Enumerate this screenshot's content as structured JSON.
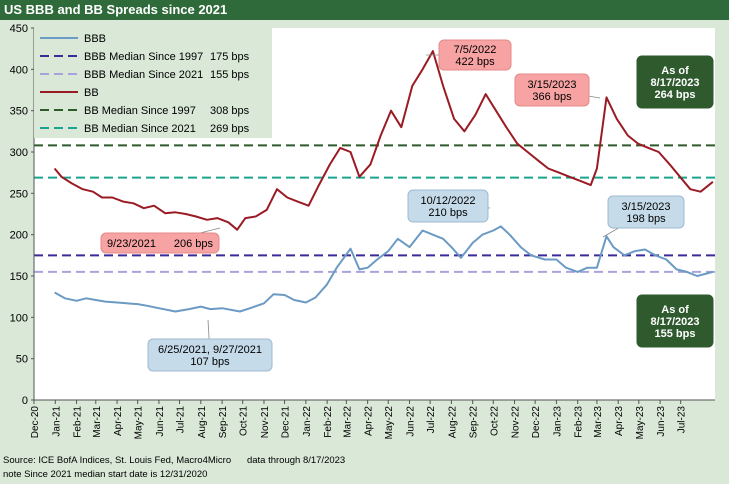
{
  "title": "US BBB and BB Spreads since 2021",
  "footer": {
    "source": "Source: ICE BofA Indices, St. Louis Fed, Macro4Micro",
    "data_through": "data through 8/17/2023",
    "note": "note Since 2021 median start date is 12/31/2020"
  },
  "colors": {
    "header": "#2f6b3a",
    "panel": "#d9e8d7",
    "bbb": "#6b9ac4",
    "bb": "#9b1b24",
    "bbb_median_1997": "#3a2a9a",
    "bbb_median_2021": "#a9a3dd",
    "bb_median_1997": "#2f5a2a",
    "bb_median_2021": "#1aa58e",
    "callout_pink": "#f7a3a3",
    "callout_blue": "#c6dbea",
    "callout_green": "#2f5a2e"
  },
  "chart_data": {
    "type": "line",
    "title": "US BBB and BB Spreads since 2021",
    "xlabel": "",
    "ylabel": "",
    "ylim": [
      0,
      450
    ],
    "yticks": [
      0,
      50,
      100,
      150,
      200,
      250,
      300,
      350,
      400,
      450
    ],
    "x_categories": [
      "Dec-20",
      "Jan-21",
      "Feb-21",
      "Mar-21",
      "Apr-21",
      "May-21",
      "Jun-21",
      "Jul-21",
      "Aug-21",
      "Sep-21",
      "Oct-21",
      "Nov-21",
      "Dec-21",
      "Jan-22",
      "Feb-22",
      "Mar-22",
      "Apr-22",
      "May-22",
      "Jun-22",
      "Jul-22",
      "Aug-22",
      "Sep-22",
      "Oct-22",
      "Nov-22",
      "Dec-22",
      "Jan-23",
      "Feb-23",
      "Mar-23",
      "Apr-23",
      "May-23",
      "Jun-23",
      "Jul-23"
    ],
    "grid": false,
    "legend_position": "top-left",
    "legend": [
      {
        "label": "BBB",
        "value": ""
      },
      {
        "label": "BBB Median Since 1997",
        "value": "175 bps"
      },
      {
        "label": "BBB Median Since 2021",
        "value": "155 bps"
      },
      {
        "label": "BB",
        "value": ""
      },
      {
        "label": "BB Median Since 1997",
        "value": "308 bps"
      },
      {
        "label": "BB Median Since 2021",
        "value": "269 bps"
      }
    ],
    "series": [
      {
        "name": "BBB",
        "points": [
          [
            "2020-12-31",
            130
          ],
          [
            "2021-01-15",
            123
          ],
          [
            "2021-02-01",
            120
          ],
          [
            "2021-02-15",
            123
          ],
          [
            "2021-03-01",
            121
          ],
          [
            "2021-03-15",
            119
          ],
          [
            "2021-04-01",
            118
          ],
          [
            "2021-04-15",
            117
          ],
          [
            "2021-05-01",
            116
          ],
          [
            "2021-05-15",
            114
          ],
          [
            "2021-06-01",
            111
          ],
          [
            "2021-06-25",
            107
          ],
          [
            "2021-07-15",
            110
          ],
          [
            "2021-08-01",
            113
          ],
          [
            "2021-08-15",
            110
          ],
          [
            "2021-09-01",
            111
          ],
          [
            "2021-09-27",
            107
          ],
          [
            "2021-10-15",
            112
          ],
          [
            "2021-11-01",
            117
          ],
          [
            "2021-11-15",
            128
          ],
          [
            "2021-12-01",
            127
          ],
          [
            "2021-12-15",
            121
          ],
          [
            "2022-01-01",
            118
          ],
          [
            "2022-01-15",
            124
          ],
          [
            "2022-02-01",
            140
          ],
          [
            "2022-02-15",
            160
          ],
          [
            "2022-03-07",
            183
          ],
          [
            "2022-03-20",
            158
          ],
          [
            "2022-04-01",
            160
          ],
          [
            "2022-04-15",
            170
          ],
          [
            "2022-05-01",
            180
          ],
          [
            "2022-05-15",
            195
          ],
          [
            "2022-06-01",
            185
          ],
          [
            "2022-06-20",
            205
          ],
          [
            "2022-07-05",
            200
          ],
          [
            "2022-07-20",
            195
          ],
          [
            "2022-08-01",
            185
          ],
          [
            "2022-08-15",
            172
          ],
          [
            "2022-09-01",
            190
          ],
          [
            "2022-09-15",
            200
          ],
          [
            "2022-10-01",
            205
          ],
          [
            "2022-10-12",
            210
          ],
          [
            "2022-10-25",
            200
          ],
          [
            "2022-11-10",
            185
          ],
          [
            "2022-11-25",
            175
          ],
          [
            "2022-12-15",
            170
          ],
          [
            "2023-01-01",
            170
          ],
          [
            "2023-01-15",
            160
          ],
          [
            "2023-02-01",
            155
          ],
          [
            "2023-02-15",
            160
          ],
          [
            "2023-03-01",
            160
          ],
          [
            "2023-03-15",
            198
          ],
          [
            "2023-03-25",
            185
          ],
          [
            "2023-04-10",
            175
          ],
          [
            "2023-04-25",
            180
          ],
          [
            "2023-05-10",
            182
          ],
          [
            "2023-05-25",
            175
          ],
          [
            "2023-06-10",
            170
          ],
          [
            "2023-06-25",
            158
          ],
          [
            "2023-07-10",
            155
          ],
          [
            "2023-07-25",
            150
          ],
          [
            "2023-08-17",
            155
          ]
        ]
      },
      {
        "name": "BB",
        "points": [
          [
            "2020-12-31",
            280
          ],
          [
            "2021-01-10",
            270
          ],
          [
            "2021-01-25",
            262
          ],
          [
            "2021-02-10",
            255
          ],
          [
            "2021-02-25",
            252
          ],
          [
            "2021-03-10",
            245
          ],
          [
            "2021-03-25",
            245
          ],
          [
            "2021-04-10",
            240
          ],
          [
            "2021-04-25",
            238
          ],
          [
            "2021-05-10",
            232
          ],
          [
            "2021-05-25",
            235
          ],
          [
            "2021-06-10",
            226
          ],
          [
            "2021-06-25",
            227
          ],
          [
            "2021-07-10",
            225
          ],
          [
            "2021-07-25",
            222
          ],
          [
            "2021-08-10",
            218
          ],
          [
            "2021-08-25",
            220
          ],
          [
            "2021-09-10",
            215
          ],
          [
            "2021-09-23",
            206
          ],
          [
            "2021-10-05",
            220
          ],
          [
            "2021-10-20",
            222
          ],
          [
            "2021-11-05",
            230
          ],
          [
            "2021-11-20",
            255
          ],
          [
            "2021-12-05",
            245
          ],
          [
            "2021-12-20",
            240
          ],
          [
            "2022-01-05",
            235
          ],
          [
            "2022-01-20",
            260
          ],
          [
            "2022-02-05",
            285
          ],
          [
            "2022-02-20",
            305
          ],
          [
            "2022-03-07",
            300
          ],
          [
            "2022-03-20",
            270
          ],
          [
            "2022-04-05",
            285
          ],
          [
            "2022-04-20",
            320
          ],
          [
            "2022-05-05",
            350
          ],
          [
            "2022-05-20",
            330
          ],
          [
            "2022-06-05",
            380
          ],
          [
            "2022-06-20",
            400
          ],
          [
            "2022-07-05",
            422
          ],
          [
            "2022-07-20",
            380
          ],
          [
            "2022-08-05",
            340
          ],
          [
            "2022-08-20",
            325
          ],
          [
            "2022-09-05",
            345
          ],
          [
            "2022-09-20",
            370
          ],
          [
            "2022-10-05",
            350
          ],
          [
            "2022-10-20",
            330
          ],
          [
            "2022-11-05",
            310
          ],
          [
            "2022-11-20",
            300
          ],
          [
            "2022-12-05",
            290
          ],
          [
            "2022-12-20",
            280
          ],
          [
            "2023-01-05",
            275
          ],
          [
            "2023-01-20",
            270
          ],
          [
            "2023-02-05",
            265
          ],
          [
            "2023-02-20",
            260
          ],
          [
            "2023-03-01",
            280
          ],
          [
            "2023-03-15",
            366
          ],
          [
            "2023-03-30",
            340
          ],
          [
            "2023-04-15",
            320
          ],
          [
            "2023-04-30",
            310
          ],
          [
            "2023-05-15",
            305
          ],
          [
            "2023-05-30",
            300
          ],
          [
            "2023-06-15",
            285
          ],
          [
            "2023-06-30",
            270
          ],
          [
            "2023-07-15",
            255
          ],
          [
            "2023-07-30",
            252
          ],
          [
            "2023-08-17",
            264
          ]
        ]
      }
    ],
    "reference_lines": [
      {
        "name": "BBB Median Since 1997",
        "value": 175
      },
      {
        "name": "BBB Median Since 2021",
        "value": 155
      },
      {
        "name": "BB Median Since 1997",
        "value": 308
      },
      {
        "name": "BB Median Since 2021",
        "value": 269
      }
    ],
    "annotations": [
      {
        "id": "ann-bb-peak",
        "lines": [
          "7/5/2022",
          "422 bps"
        ],
        "style": "pink"
      },
      {
        "id": "ann-bb-mar23",
        "lines": [
          "3/15/2023",
          "366 bps"
        ],
        "style": "pink"
      },
      {
        "id": "ann-bb-low",
        "lines": [
          "9/23/2021",
          "206 bps"
        ],
        "style": "pink"
      },
      {
        "id": "ann-bb-current",
        "lines": [
          "As of",
          "8/17/2023",
          "264 bps"
        ],
        "style": "green"
      },
      {
        "id": "ann-bbb-peak",
        "lines": [
          "10/12/2022",
          "210 bps"
        ],
        "style": "blue"
      },
      {
        "id": "ann-bbb-mar23",
        "lines": [
          "3/15/2023",
          "198 bps"
        ],
        "style": "blue"
      },
      {
        "id": "ann-bbb-low",
        "lines": [
          "6/25/2021, 9/27/2021",
          "107 bps"
        ],
        "style": "blue"
      },
      {
        "id": "ann-bbb-current",
        "lines": [
          "As of",
          "8/17/2023",
          "155 bps"
        ],
        "style": "green"
      }
    ]
  }
}
